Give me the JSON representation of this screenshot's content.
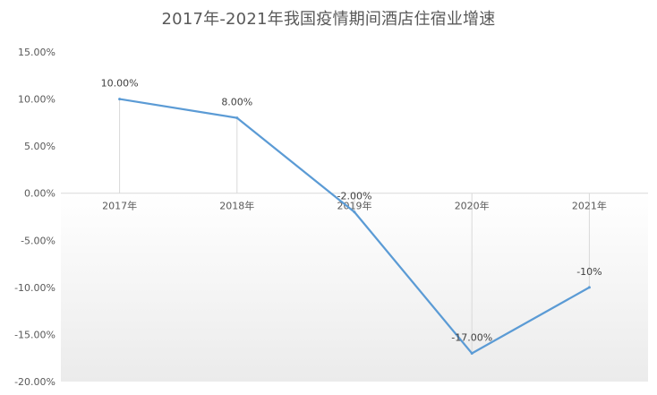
{
  "chart_data": {
    "type": "line",
    "title": "2017年-2021年我国疫情期间酒店住宿业增速",
    "categories": [
      "2017年",
      "2018年",
      "2019年",
      "2020年",
      "2021年"
    ],
    "series": [
      {
        "values": [
          10,
          8,
          -2,
          -17,
          -10
        ],
        "data_labels": [
          "10.00%",
          "8.00%",
          "-2.00%",
          "-17.00%",
          "-10%"
        ],
        "color": "#5B9BD5"
      }
    ],
    "ylim": [
      -20,
      15
    ],
    "y_ticks": [
      15,
      10,
      5,
      0,
      -5,
      -10,
      -15,
      -20
    ],
    "y_tick_labels": [
      "15.00%",
      "10.00%",
      "5.00%",
      "0.00%",
      "-5.00%",
      "-10.00%",
      "-15.00%",
      "-20.00%"
    ],
    "grid": "vertical drop lines",
    "legend": "none",
    "plot_background": "gradient white to light gray"
  }
}
